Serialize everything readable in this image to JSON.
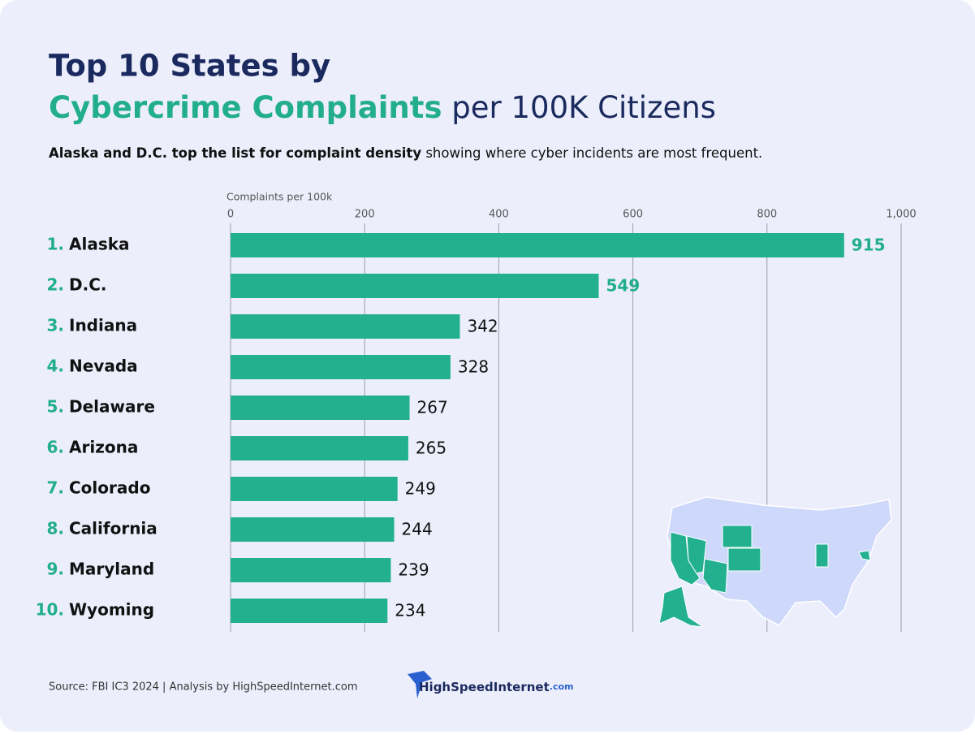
{
  "chart_data": {
    "type": "bar",
    "orientation": "horizontal",
    "title_line1": "Top 10 States by",
    "title_line2_highlight": "Cybercrime Complaints",
    "title_line2_rest": "per 100K Citizens",
    "subtitle_bold": "Alaska and D.C. top the list for complaint density",
    "subtitle_rest": "showing where cyber incidents are most frequent.",
    "x_label": "Complaints per 100k",
    "ranks": [
      "1.",
      "2.",
      "3.",
      "4.",
      "5.",
      "6.",
      "7.",
      "8.",
      "9.",
      "10."
    ],
    "categories": [
      "Alaska",
      "D.C.",
      "Indiana",
      "Nevada",
      "Delaware",
      "Arizona",
      "Colorado",
      "California",
      "Maryland",
      "Wyoming"
    ],
    "values": [
      915,
      549,
      342,
      328,
      267,
      265,
      249,
      244,
      239,
      234
    ],
    "highlight": [
      true,
      true,
      false,
      false,
      false,
      false,
      false,
      false,
      false,
      false
    ],
    "color": "#22b08f",
    "xlim": [
      0,
      1000
    ],
    "xticks": [
      0,
      200,
      400,
      600,
      800,
      {
        "value": 1000,
        "label": "1,000"
      }
    ],
    "grid": true,
    "source": "Source: FBI IC3 2024 | Analysis by HighSpeedInternet.com",
    "logo_main": "HighSpeedInternet",
    "logo_suffix": ".com"
  }
}
